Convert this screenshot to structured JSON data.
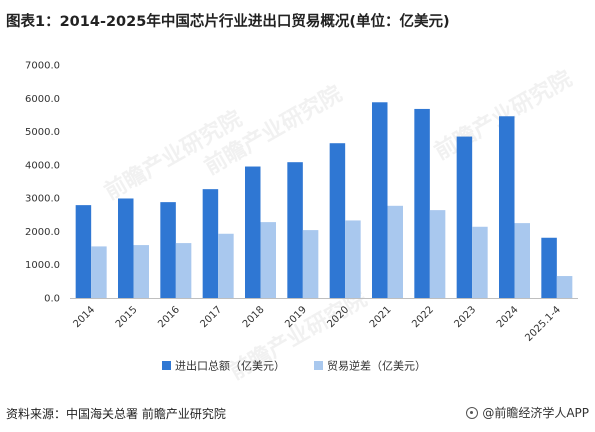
{
  "title": "图表1：2014-2025年中国芯片行业进出口贸易概况(单位：亿美元)",
  "source": "资料来源：中国海关总署 前瞻产业研究院",
  "brand": "@前瞻经济学人APP",
  "watermark": "前瞻产业研究院",
  "colors": {
    "series1": "#2f77d3",
    "series2": "#a9c8ee",
    "axis": "#bfbfbf"
  },
  "chart_data": {
    "type": "bar",
    "title": "图表1：2014-2025年中国芯片行业进出口贸易概况(单位：亿美元)",
    "categories": [
      "2014",
      "2015",
      "2016",
      "2017",
      "2018",
      "2019",
      "2020",
      "2021",
      "2022",
      "2023",
      "2024",
      "2025.1-4"
    ],
    "series": [
      {
        "name": "进出口总额（亿美元）",
        "values": [
          2790,
          2990,
          2880,
          3270,
          3950,
          4080,
          4650,
          5880,
          5680,
          4850,
          5460,
          1810
        ]
      },
      {
        "name": "贸易逆差（亿美元）",
        "values": [
          1550,
          1590,
          1650,
          1930,
          2280,
          2040,
          2330,
          2770,
          2640,
          2140,
          2250,
          660
        ]
      }
    ],
    "ylim": [
      0,
      7000
    ],
    "yticks": [
      "0.0",
      "1000.0",
      "2000.0",
      "3000.0",
      "4000.0",
      "5000.0",
      "6000.0",
      "7000.0"
    ],
    "grid": false,
    "legend": "bottom"
  }
}
